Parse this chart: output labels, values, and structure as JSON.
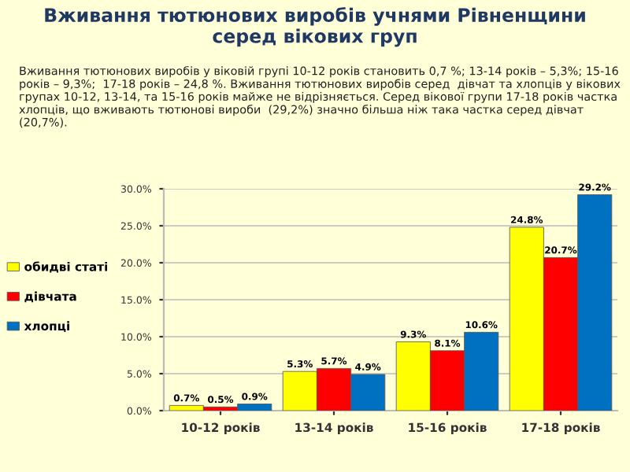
{
  "chart_data": {
    "type": "bar",
    "title": "Вживання тютюнових виробів учнями Рівненщини\nсеред вікових груп",
    "annotations": [
      "Вживання тютюнових виробів у віковій групі 10-12 років становить 0,7 %; 13-14 років – 5,3%; 15-16 років – 9,3%;  17-18 років – 24,8 %. Вживання тютюнових виробів серед  дівчат та хлопців у вікових групах 10-12, 13-14, та 15-16 років майже не відрізняється. Серед вікової групи 17-18 років частка хлопців, що вживають тютюнові вироби  (29,2%) значно більша ніж така частка серед дівчат (20,7%)."
    ],
    "categories": [
      "10-12 років",
      "13-14 років",
      "15-16 років",
      "17-18 років"
    ],
    "series": [
      {
        "name": "обидві статі",
        "color": "#ffff00",
        "values": [
          0.7,
          5.3,
          9.3,
          24.8
        ],
        "value_labels": [
          "0.7%",
          "5.3%",
          "9.3%",
          "24.8%"
        ]
      },
      {
        "name": "дівчата",
        "color": "#ff0000",
        "values": [
          0.5,
          5.7,
          8.1,
          20.7
        ],
        "value_labels": [
          "0.5%",
          "5.7%",
          "8.1%",
          "20.7%"
        ]
      },
      {
        "name": "хлопці",
        "color": "#0070c0",
        "values": [
          0.9,
          4.9,
          10.6,
          29.2
        ],
        "value_labels": [
          "0.9%",
          "4.9%",
          "10.6%",
          "29.2%"
        ]
      }
    ],
    "ylim": [
      0,
      30
    ],
    "yticks": [
      {
        "value": 0,
        "label": "0.0%"
      },
      {
        "value": 5,
        "label": "5.0%"
      },
      {
        "value": 10,
        "label": "10.0%"
      },
      {
        "value": 15,
        "label": "15.0%"
      },
      {
        "value": 20,
        "label": "20.0%"
      },
      {
        "value": 25,
        "label": "25.0%"
      },
      {
        "value": 30,
        "label": "30.0%"
      }
    ],
    "grid": "y",
    "legend": "left"
  }
}
